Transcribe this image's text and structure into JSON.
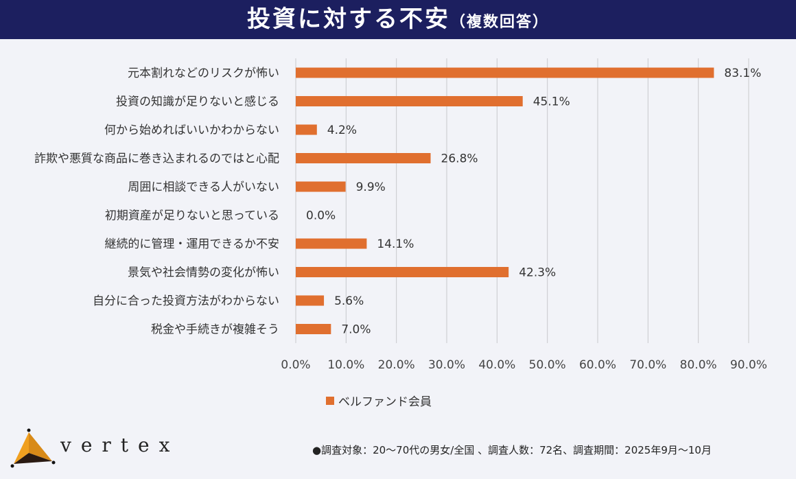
{
  "header": {
    "title": "投資に対する不安",
    "subtitle": "（複数回答）"
  },
  "legend": {
    "label": "ベルファンド会員"
  },
  "brand": {
    "name": "vertex"
  },
  "note": "●調査対象：20～70代の男女/全国 、調査人数：72名、調査期間：2025年9月～10月",
  "colors": {
    "bar": "#e06f2f",
    "header": "#1c1f5f",
    "grid": "#c8c8cc"
  },
  "chart_data": {
    "type": "bar",
    "orientation": "horizontal",
    "title": "投資に対する不安（複数回答）",
    "categories": [
      "元本割れなどのリスクが怖い",
      "投資の知識が足りないと感じる",
      "何から始めればいいかわからない",
      "詐欺や悪質な商品に巻き込まれるのではと心配",
      "周囲に相談できる人がいない",
      "初期資産が足りないと思っている",
      "継続的に管理・運用できるか不安",
      "景気や社会情勢の変化が怖い",
      "自分に合った投資方法がわからない",
      "税金や手続きが複雑そう"
    ],
    "series": [
      {
        "name": "ベルファンド会員",
        "values": [
          83.1,
          45.1,
          4.2,
          26.8,
          9.9,
          0.0,
          14.1,
          42.3,
          5.6,
          7.0
        ]
      }
    ],
    "data_labels": [
      "83.1%",
      "45.1%",
      "4.2%",
      "26.8%",
      "9.9%",
      "0.0%",
      "14.1%",
      "42.3%",
      "5.6%",
      "7.0%"
    ],
    "xlim": [
      0,
      90
    ],
    "xticks": [
      "0.0%",
      "10.0%",
      "20.0%",
      "30.0%",
      "40.0%",
      "50.0%",
      "60.0%",
      "70.0%",
      "80.0%",
      "90.0%"
    ],
    "grid": true,
    "legend_position": "bottom"
  }
}
